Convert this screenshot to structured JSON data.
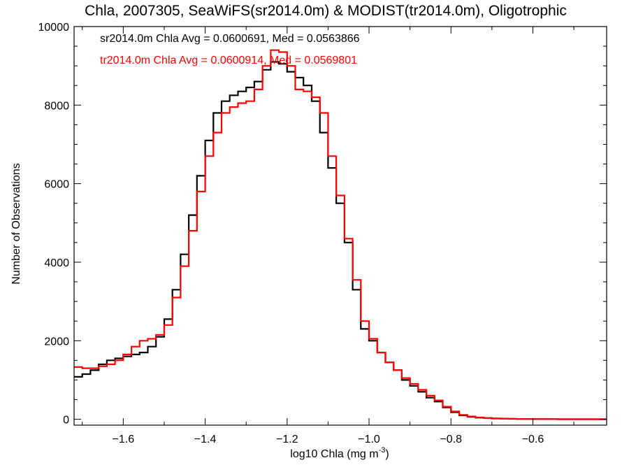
{
  "chart_data": {
    "type": "line",
    "step": true,
    "title": "Chla, 2007305, SeaWiFS(sr2014.0m) & MODIST(tr2014.0m), Oligotrophic",
    "xlabel_base": "log10 Chla (mg m",
    "xlabel_sup": "-3",
    "xlabel_end": ")",
    "ylabel": "Number of Observations",
    "xlim": [
      -1.72,
      -0.42
    ],
    "ylim": [
      -150,
      10000
    ],
    "x_ticks": [
      -1.6,
      -1.4,
      -1.2,
      -1.0,
      -0.8,
      -0.6
    ],
    "x_tick_labels": [
      "−1.6",
      "−1.4",
      "−1.2",
      "−1.0",
      "−0.8",
      "−0.6"
    ],
    "y_ticks": [
      0,
      2000,
      4000,
      6000,
      8000,
      10000
    ],
    "y_tick_labels": [
      "0",
      "2000",
      "4000",
      "6000",
      "8000",
      "10000"
    ],
    "annotations": [
      {
        "text": "sr2014.0m Chla Avg = 0.0600691, Med = 0.0563866",
        "color": "#000000"
      },
      {
        "text": "tr2014.0m Chla Avg = 0.0600914, Med = 0.0569801",
        "color": "#ff0000"
      }
    ],
    "series": [
      {
        "color": "#000000",
        "x": [
          -1.72,
          -1.7,
          -1.68,
          -1.66,
          -1.64,
          -1.62,
          -1.6,
          -1.58,
          -1.56,
          -1.54,
          -1.52,
          -1.5,
          -1.48,
          -1.46,
          -1.44,
          -1.42,
          -1.4,
          -1.38,
          -1.36,
          -1.34,
          -1.32,
          -1.3,
          -1.28,
          -1.26,
          -1.24,
          -1.22,
          -1.2,
          -1.18,
          -1.16,
          -1.14,
          -1.12,
          -1.1,
          -1.08,
          -1.06,
          -1.04,
          -1.02,
          -1.0,
          -0.98,
          -0.96,
          -0.94,
          -0.92,
          -0.9,
          -0.88,
          -0.86,
          -0.84,
          -0.82,
          -0.8,
          -0.78,
          -0.76,
          -0.74,
          -0.72,
          -0.7,
          -0.68,
          -0.66,
          -0.64,
          -0.62,
          -0.6,
          -0.58,
          -0.56,
          -0.54,
          -0.52,
          -0.5,
          -0.48,
          -0.46,
          -0.44,
          -0.42
        ],
        "y": [
          1080,
          1150,
          1250,
          1400,
          1500,
          1550,
          1600,
          1650,
          1700,
          1850,
          2100,
          2550,
          3300,
          4200,
          5200,
          6200,
          7100,
          7800,
          8100,
          8250,
          8350,
          8450,
          8600,
          8900,
          9100,
          9050,
          8850,
          8700,
          8500,
          8100,
          7300,
          6400,
          5500,
          4500,
          3300,
          2300,
          2000,
          1700,
          1450,
          1250,
          1000,
          850,
          700,
          550,
          450,
          300,
          180,
          100,
          60,
          40,
          30,
          20,
          15,
          10,
          8,
          6,
          5,
          4,
          3,
          2,
          2,
          1,
          1,
          1,
          1,
          1
        ]
      },
      {
        "color": "#ff0000",
        "x": [
          -1.72,
          -1.7,
          -1.68,
          -1.66,
          -1.64,
          -1.62,
          -1.6,
          -1.58,
          -1.56,
          -1.54,
          -1.52,
          -1.5,
          -1.48,
          -1.46,
          -1.44,
          -1.42,
          -1.4,
          -1.38,
          -1.36,
          -1.34,
          -1.32,
          -1.3,
          -1.28,
          -1.26,
          -1.24,
          -1.22,
          -1.2,
          -1.18,
          -1.16,
          -1.14,
          -1.12,
          -1.1,
          -1.08,
          -1.06,
          -1.04,
          -1.02,
          -1.0,
          -0.98,
          -0.96,
          -0.94,
          -0.92,
          -0.9,
          -0.88,
          -0.86,
          -0.84,
          -0.82,
          -0.8,
          -0.78,
          -0.76,
          -0.74,
          -0.72,
          -0.7,
          -0.68,
          -0.66,
          -0.64,
          -0.62,
          -0.6,
          -0.58,
          -0.56,
          -0.54,
          -0.52,
          -0.5,
          -0.48,
          -0.46,
          -0.44,
          -0.42
        ],
        "y": [
          1330,
          1300,
          1300,
          1350,
          1400,
          1500,
          1650,
          1850,
          2000,
          2050,
          2150,
          2400,
          3100,
          3900,
          4800,
          5800,
          6700,
          7300,
          7800,
          7950,
          8050,
          8100,
          8400,
          9000,
          9400,
          9350,
          9000,
          8400,
          8350,
          8200,
          7800,
          6700,
          5700,
          4600,
          3550,
          2500,
          2050,
          1700,
          1450,
          1250,
          1050,
          900,
          750,
          600,
          480,
          320,
          200,
          110,
          70,
          45,
          30,
          22,
          16,
          12,
          9,
          7,
          5,
          4,
          3,
          2,
          2,
          1,
          1,
          1,
          1,
          1
        ]
      }
    ]
  }
}
